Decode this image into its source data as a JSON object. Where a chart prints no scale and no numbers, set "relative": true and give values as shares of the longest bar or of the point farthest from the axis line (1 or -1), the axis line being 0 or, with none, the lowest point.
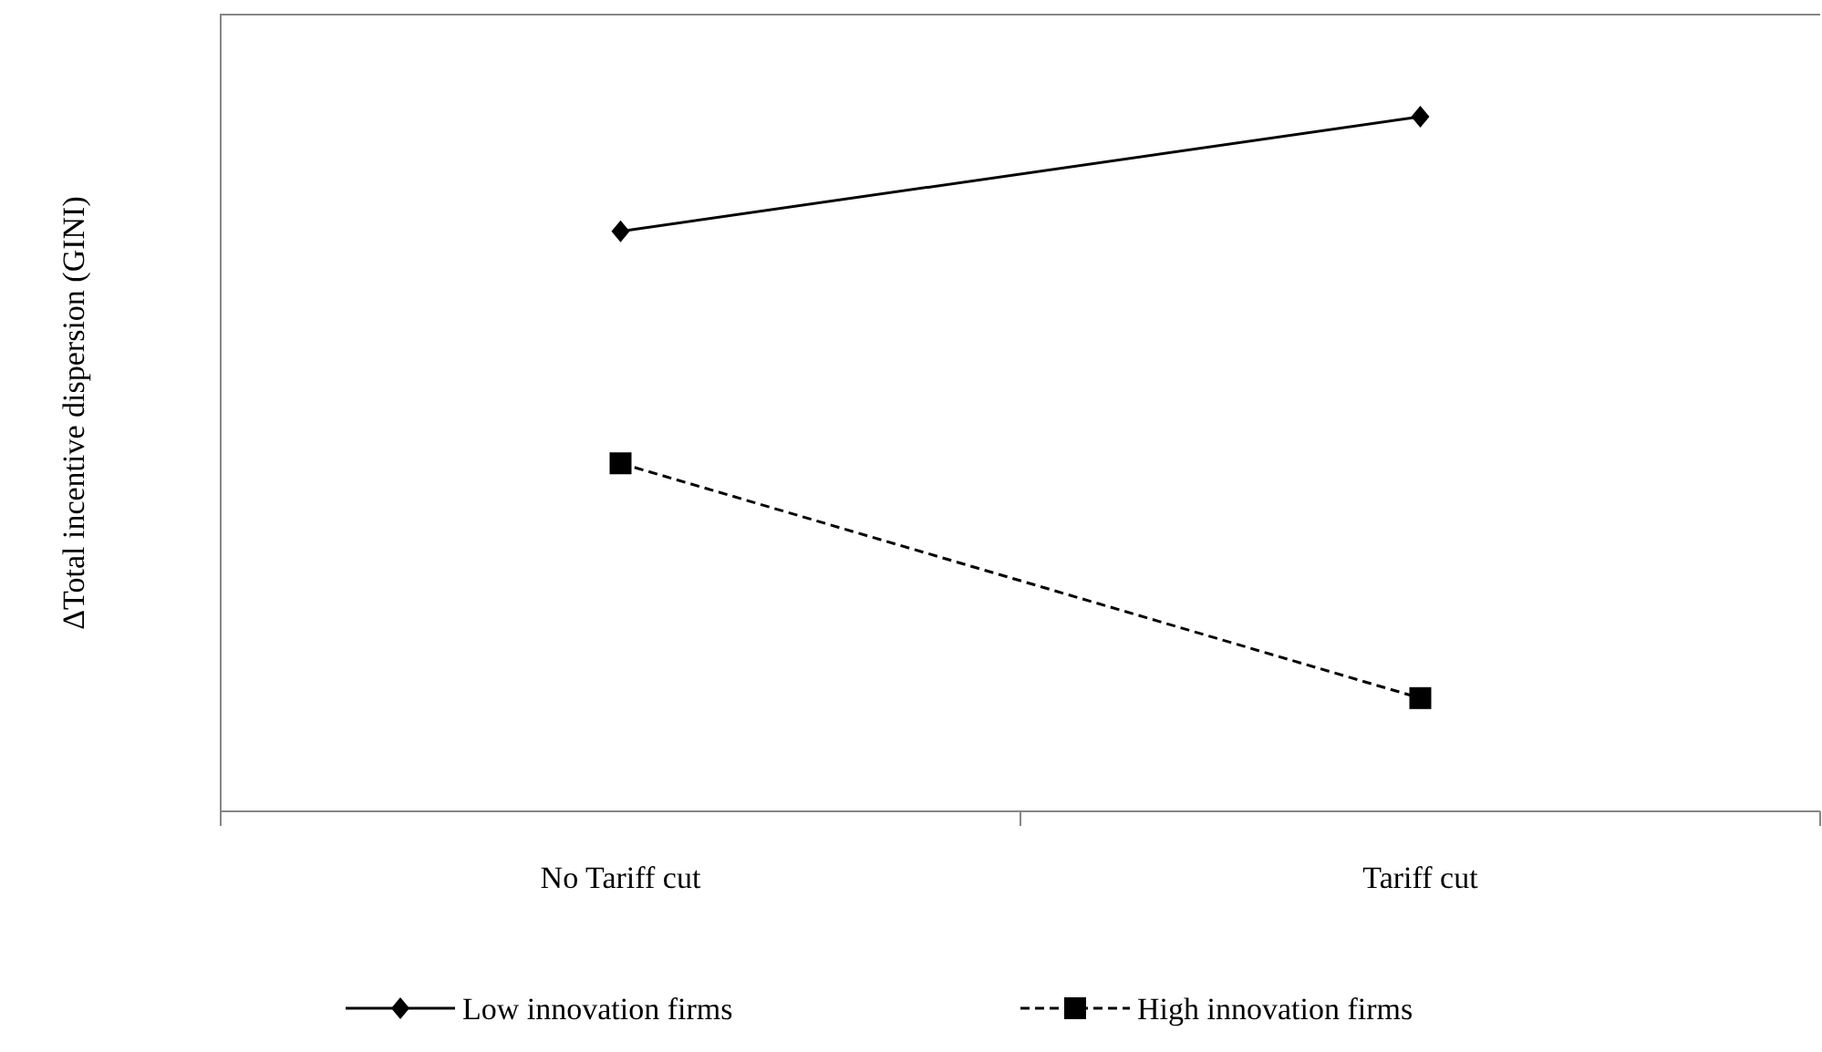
{
  "chart_data": {
    "type": "line",
    "ylabel": "ΔTotal incentive dispersion (GINI)",
    "categories": [
      "No Tariff cut",
      "Tariff cut"
    ],
    "relative": true,
    "legend": "bottom",
    "series": [
      {
        "name": "Low innovation firms",
        "color": "#000000",
        "values": [
          0.835,
          1
        ],
        "marker": "diamond",
        "line_style": "solid"
      },
      {
        "name": "High innovation firms",
        "color": "#000000",
        "values": [
          0.501,
          0.163
        ],
        "marker": "square",
        "line_style": "dashed"
      }
    ]
  }
}
